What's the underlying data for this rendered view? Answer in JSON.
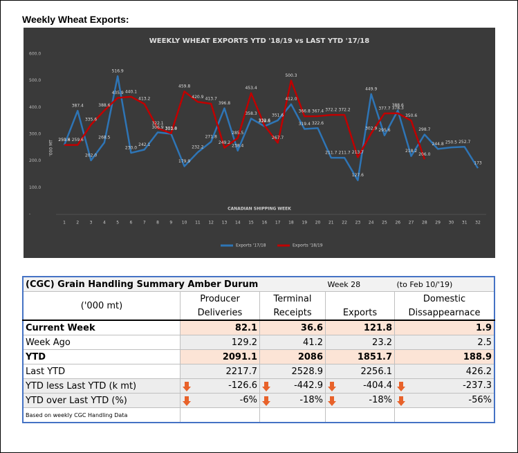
{
  "heading": "Weekly Wheat Exports:",
  "chart_data": {
    "type": "line",
    "title": "WEEKLY WHEAT EXPORTS YTD '18/19 vs LAST YTD '17/18",
    "xlabel": "CANADIAN SHIPPING WEEK",
    "ylabel": "'000 MT",
    "categories": [
      "1",
      "2",
      "3",
      "4",
      "5",
      "6",
      "7",
      "8",
      "9",
      "10",
      "11",
      "12",
      "13",
      "14",
      "15",
      "16",
      "17",
      "18",
      "19",
      "20",
      "21",
      "22",
      "23",
      "24",
      "25",
      "26",
      "27",
      "28",
      "29",
      "30",
      "31",
      "32"
    ],
    "series": [
      {
        "name": "Exports '17/18",
        "color": "#2e75b6",
        "values": [
          259.8,
          387.4,
          202.0,
          268.5,
          516.9,
          230.0,
          242.1,
          306.9,
          301.4,
          179.9,
          232.2,
          271.8,
          396.8,
          238.4,
          358.3,
          329.6,
          351.6,
          412.0,
          319.4,
          322.6,
          211.7,
          211.7,
          127.6,
          449.9,
          295.6,
          388.6,
          218.2,
          298.7,
          244.8,
          250.5,
          252.7,
          173
        ],
        "value_labels": [
          "259.8",
          "387.4",
          "202.0",
          "268.5",
          "516.9",
          "230.0",
          "242.1",
          "306.9",
          "301.4",
          "179.9",
          "232.2",
          "271.8",
          "396.8",
          "238.4",
          "358.3",
          "329.6",
          "351.6",
          "412.0",
          "319.4",
          "322.6",
          "211.7",
          "211.7",
          "127.6",
          "449.9",
          "295.6",
          "388.6",
          "218.2",
          "298.7",
          "244.8",
          "250.5",
          "252.7",
          "173"
        ]
      },
      {
        "name": "Exports '18/19",
        "color": "#c00000",
        "values": [
          259.6,
          259.6,
          335.6,
          388.6,
          435.9,
          440.1,
          413.2,
          322.1,
          303.0,
          459.8,
          420.9,
          413.7,
          249.2,
          285.5,
          453.4,
          332.6,
          267.7,
          500.3,
          366.8,
          367.4,
          372.2,
          372.2,
          213.7,
          302.9,
          377.7,
          378.3,
          350.6,
          206.0,
          null,
          null,
          null,
          null
        ],
        "value_labels": [
          "259.6",
          "259.6",
          "335.6",
          "388.6",
          "435.9",
          "440.1",
          "413.2",
          "322.1",
          "303.0",
          "459.8",
          "420.9",
          "413.7",
          "249.2",
          "285.5",
          "453.4",
          "332.6",
          "267.7",
          "500.3",
          "366.8",
          "367.4",
          "372.2",
          "372.2",
          "213.7",
          "302.9",
          "377.7",
          "378.3",
          "350.6",
          "206.0",
          null,
          null,
          null,
          null
        ]
      }
    ],
    "ylim": [
      0,
      600
    ],
    "yticks": [
      {
        "value": 0,
        "label": "-"
      },
      {
        "value": 100,
        "label": "100.0"
      },
      {
        "value": 200,
        "label": "200.0"
      },
      {
        "value": 300,
        "label": "300.0"
      },
      {
        "value": 400,
        "label": "400.0"
      },
      {
        "value": 500,
        "label": "500.0"
      },
      {
        "value": 600,
        "label": "600.0"
      }
    ],
    "grid": false,
    "legend": "bottom"
  },
  "table": {
    "title": "(CGC) Grain Handling Summary Amber Durum",
    "week": "Week 28",
    "period": "(to Feb 10/'19)",
    "unit": "('000 mt)",
    "columns": [
      [
        "Producer",
        "Deliveries"
      ],
      [
        "Terminal",
        "Receipts"
      ],
      [
        "Exports"
      ],
      [
        "Domestic",
        "Dissappearnace"
      ]
    ],
    "rows": [
      [
        "Current Week",
        "82.1",
        "36.6",
        "121.8",
        "1.9"
      ],
      [
        "Week Ago",
        "129.2",
        "41.2",
        "23.2",
        "2.5"
      ],
      [
        "YTD",
        "2091.1",
        "2086",
        "1851.7",
        "188.9"
      ],
      [
        "Last YTD",
        "2217.7",
        "2528.9",
        "2256.1",
        "426.2"
      ],
      [
        "YTD less Last YTD (k mt)",
        "-126.6",
        "-442.9",
        "-404.4",
        "-237.3"
      ],
      [
        "YTD over Last YTD (%)",
        "-6%",
        "-18%",
        "-18%",
        "-56%"
      ]
    ],
    "footnote": "Based on weekly CGC Handling Data"
  }
}
